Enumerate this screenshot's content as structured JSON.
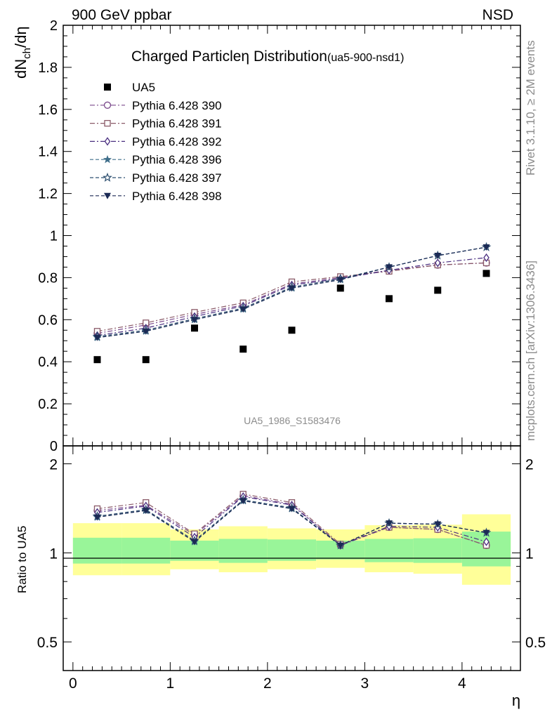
{
  "header": {
    "left": "900 GeV ppbar",
    "right": "NSD"
  },
  "side_text": {
    "rivet": "Rivet 3.1.10, ≥ 2M events",
    "mcplots": "mcplots.cern.ch [arXiv:1306.3436]"
  },
  "chart_data": [
    {
      "type": "scatter",
      "title": "Charged Particle",
      "title_symbol": "η",
      "title_rest": " Distribution",
      "subtitle": "(ua5-900-nsd1)",
      "watermark": "UA5_1986_S1583476",
      "ylabel": "dN_ch/dη",
      "ylabel_parts": {
        "main": "dN",
        "sub": "ch",
        "rest": "/dη"
      },
      "ylim": [
        0,
        2
      ],
      "xlim": [
        -0.1,
        4.6
      ],
      "yticks": [
        0,
        0.2,
        0.4,
        0.6,
        0.8,
        1,
        1.2,
        1.4,
        1.6,
        1.8,
        2
      ],
      "ytick_labels": [
        "0",
        "0.2",
        "0.4",
        "0.6",
        "0.8",
        "1",
        "1.2",
        "1.4",
        "1.6",
        "1.8",
        "2"
      ],
      "grid": false,
      "legend_position": "top-left",
      "x": [
        0.25,
        0.75,
        1.25,
        1.75,
        2.25,
        2.75,
        3.25,
        3.75,
        4.25
      ],
      "series": [
        {
          "name": "UA5",
          "marker": "filled-square",
          "color": "#000000",
          "line": "none",
          "values": [
            0.41,
            0.41,
            0.56,
            0.46,
            0.55,
            0.75,
            0.7,
            0.74,
            0.82
          ]
        },
        {
          "name": "Pythia 6.428 390",
          "marker": "open-circle",
          "color": "#7b4a8c",
          "line": "dashdot",
          "values": [
            0.535,
            0.575,
            0.625,
            0.67,
            0.77,
            0.8,
            0.835,
            0.86,
            0.87
          ]
        },
        {
          "name": "Pythia 6.428 391",
          "marker": "open-square",
          "color": "#8a5a68",
          "line": "dashdot",
          "values": [
            0.545,
            0.585,
            0.635,
            0.68,
            0.78,
            0.805,
            0.83,
            0.86,
            0.87
          ]
        },
        {
          "name": "Pythia 6.428 392",
          "marker": "open-diamond",
          "color": "#4a2f80",
          "line": "dashdot",
          "values": [
            0.525,
            0.56,
            0.615,
            0.665,
            0.765,
            0.795,
            0.835,
            0.87,
            0.895
          ]
        },
        {
          "name": "Pythia 6.428 396",
          "marker": "filled-star",
          "color": "#3e6e8a",
          "line": "dashed",
          "values": [
            0.515,
            0.545,
            0.6,
            0.65,
            0.75,
            0.79,
            0.85,
            0.905,
            0.945
          ]
        },
        {
          "name": "Pythia 6.428 397",
          "marker": "open-star",
          "color": "#2e5070",
          "line": "dashed",
          "values": [
            0.52,
            0.55,
            0.605,
            0.655,
            0.755,
            0.795,
            0.85,
            0.905,
            0.945
          ]
        },
        {
          "name": "Pythia 6.428 398",
          "marker": "filled-down-triangle",
          "color": "#1c2a55",
          "line": "dashed",
          "values": [
            0.515,
            0.545,
            0.6,
            0.65,
            0.75,
            0.79,
            0.85,
            0.905,
            0.945
          ]
        }
      ]
    },
    {
      "type": "line",
      "ylabel": "Ratio to UA5",
      "xlabel": "η",
      "y_scale": "log",
      "ylim": [
        0.4,
        2.3
      ],
      "xlim": [
        -0.1,
        4.6
      ],
      "xticks": [
        0,
        1,
        2,
        3,
        4
      ],
      "xtick_labels": [
        "0",
        "1",
        "2",
        "3",
        "4"
      ],
      "yticks": [
        0.5,
        1,
        2
      ],
      "ytick_labels": [
        "0.5",
        "1",
        "2"
      ],
      "bins": [
        [
          0,
          0.5
        ],
        [
          0.5,
          1
        ],
        [
          1,
          1.5
        ],
        [
          1.5,
          2
        ],
        [
          2,
          2.5
        ],
        [
          2.5,
          3
        ],
        [
          3,
          3.5
        ],
        [
          3.5,
          4
        ],
        [
          4,
          4.5
        ]
      ],
      "band_inner": [
        [
          0.92,
          1.125
        ],
        [
          0.92,
          1.125
        ],
        [
          0.94,
          1.1
        ],
        [
          0.925,
          1.115
        ],
        [
          0.94,
          1.11
        ],
        [
          0.95,
          1.1
        ],
        [
          0.93,
          1.115
        ],
        [
          0.925,
          1.12
        ],
        [
          0.9,
          1.18
        ]
      ],
      "band_outer": [
        [
          0.84,
          1.26
        ],
        [
          0.84,
          1.26
        ],
        [
          0.88,
          1.2
        ],
        [
          0.86,
          1.23
        ],
        [
          0.88,
          1.21
        ],
        [
          0.89,
          1.2
        ],
        [
          0.86,
          1.24
        ],
        [
          0.85,
          1.245
        ],
        [
          0.78,
          1.35
        ]
      ],
      "band_colors": {
        "inner": "#99f599",
        "outer": "#ffff99"
      },
      "x": [
        0.25,
        0.75,
        1.25,
        1.75,
        2.25,
        2.75,
        3.25,
        3.75,
        4.25
      ],
      "series": [
        {
          "name": "Pythia 6.428 390",
          "marker": "open-circle",
          "color": "#7b4a8c",
          "line": "dashdot",
          "values": [
            1.39,
            1.45,
            1.15,
            1.56,
            1.46,
            1.06,
            1.22,
            1.2,
            1.06
          ]
        },
        {
          "name": "Pythia 6.428 391",
          "marker": "open-square",
          "color": "#8a5a68",
          "line": "dashdot",
          "values": [
            1.41,
            1.48,
            1.16,
            1.58,
            1.48,
            1.07,
            1.22,
            1.2,
            1.06
          ]
        },
        {
          "name": "Pythia 6.428 392",
          "marker": "open-diamond",
          "color": "#4a2f80",
          "line": "dashdot",
          "values": [
            1.37,
            1.44,
            1.13,
            1.55,
            1.45,
            1.06,
            1.23,
            1.22,
            1.09
          ]
        },
        {
          "name": "Pythia 6.428 396",
          "marker": "filled-star",
          "color": "#3e6e8a",
          "line": "dashed",
          "values": [
            1.32,
            1.39,
            1.09,
            1.5,
            1.41,
            1.06,
            1.26,
            1.25,
            1.17
          ]
        },
        {
          "name": "Pythia 6.428 397",
          "marker": "open-star",
          "color": "#2e5070",
          "line": "dashed",
          "values": [
            1.33,
            1.4,
            1.1,
            1.51,
            1.42,
            1.06,
            1.26,
            1.25,
            1.17
          ]
        },
        {
          "name": "Pythia 6.428 398",
          "marker": "filled-down-triangle",
          "color": "#1c2a55",
          "line": "dashed",
          "values": [
            1.32,
            1.39,
            1.09,
            1.5,
            1.41,
            1.06,
            1.26,
            1.25,
            1.17
          ]
        }
      ]
    }
  ]
}
